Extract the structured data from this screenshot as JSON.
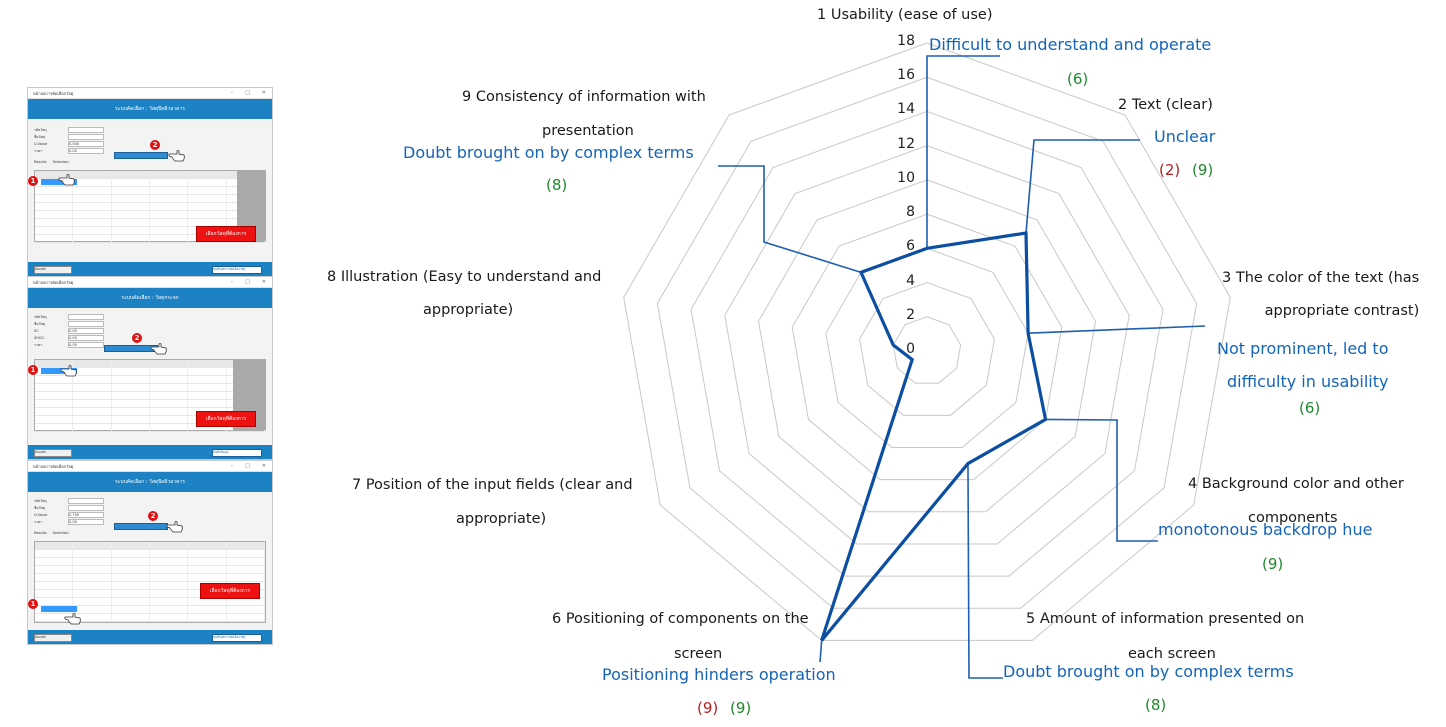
{
  "screenshots": [
    {
      "title": "หน้าจอการคัดเลือกวัสดุ",
      "banner": "ระบบคัดเลือก : วัสดุปิดผิวอาคาร",
      "fields": [
        "รหัสวัสดุ",
        "ชื่อวัสดุ",
        "U-Value",
        "ราคา"
      ],
      "values": [
        "",
        "",
        "0.000",
        "0.00"
      ],
      "tabs": [
        "Results",
        "Selection"
      ],
      "red_button": "เลือกวัสดุที่ต้องการ",
      "footer_left": "ย้อนกลับ",
      "footer_right": "บันทึกผลการคัดเลือกวัสดุ"
    },
    {
      "title": "หน้าจอการคัดเลือกวัสดุ",
      "banner": "ระบบคัดเลือก : วัสดุกระจก",
      "fields": [
        "รหัสวัสดุ",
        "ชื่อวัสดุ",
        "SC",
        "SHGC",
        "ราคา"
      ],
      "values": [
        "",
        "",
        "0.00",
        "0.00",
        "0.00"
      ],
      "tabs": [],
      "red_button": "เลือกวัสดุที่ต้องการ",
      "footer_left": "ย้อนกลับ",
      "footer_right": "บันทึกข้อมูล"
    },
    {
      "title": "หน้าจอการคัดเลือกวัสดุ",
      "banner": "ระบบคัดเลือก : วัสดุปิดผิวอาคาร",
      "fields": [
        "รหัสวัสดุ",
        "ชื่อวัสดุ",
        "U-Value",
        "ราคา"
      ],
      "values": [
        "",
        "",
        "0.750",
        "0.00"
      ],
      "tabs": [
        "Results",
        "Selection"
      ],
      "red_button": "เลือกวัสดุที่ต้องการ",
      "footer_left": "ย้อนกลับ",
      "footer_right": "บันทึกผลการคัดเลือกวัสดุ"
    }
  ],
  "badges": [
    "1",
    "2"
  ],
  "chart_data": {
    "type": "radar",
    "title": "",
    "rmin": 0,
    "rmax": 18,
    "ticks": [
      "0",
      "2",
      "4",
      "6",
      "8",
      "10",
      "12",
      "14",
      "16",
      "18"
    ],
    "grid": true,
    "categories": [
      "1 Usability (ease of use)",
      "2 Text (clear)",
      "3 The color of the text (has appropriate contrast)",
      "4 Background color and other components",
      "5 Amount of information presented on each screen",
      "6 Positioning of components on the screen",
      "7 Position of the input fields (clear and appropriate)",
      "8 Illustration (Easy to understand and appropriate)",
      "9 Consistency of information with presentation"
    ],
    "series": [
      {
        "name": "",
        "values": [
          6,
          9,
          6,
          8,
          7,
          18,
          1,
          2,
          6
        ],
        "color": "#0b4ea2"
      }
    ],
    "category_label_lines": [
      [
        "1 Usability (ease of use)"
      ],
      [
        "2 Text (clear)"
      ],
      [
        "3 The color of the text (has",
        "appropriate contrast)"
      ],
      [
        "4 Background color and other",
        "components"
      ],
      [
        "5 Amount of information presented on",
        "each screen"
      ],
      [
        "6 Positioning of components on the",
        "screen"
      ],
      [
        "7 Position of the input fields (clear and",
        "appropriate)"
      ],
      [
        "8 Illustration (Easy to understand and",
        "appropriate)"
      ],
      [
        "9 Consistency of information with",
        "presentation"
      ]
    ],
    "annotations": [
      {
        "category": "1",
        "text": [
          "Difficult to understand and operate"
        ],
        "counts": [
          {
            "value": "(6)",
            "color": "green"
          }
        ]
      },
      {
        "category": "2",
        "text": [
          "Unclear"
        ],
        "counts": [
          {
            "value": "(2)",
            "color": "red"
          },
          {
            "value": "(9)",
            "color": "green"
          }
        ]
      },
      {
        "category": "3",
        "text": [
          "Not prominent, led to",
          "difficulty in usability"
        ],
        "counts": [
          {
            "value": "(6)",
            "color": "green"
          }
        ]
      },
      {
        "category": "4",
        "text": [
          "monotonous backdrop hue"
        ],
        "counts": [
          {
            "value": "(9)",
            "color": "green"
          }
        ]
      },
      {
        "category": "5",
        "text": [
          "Doubt brought on by complex terms"
        ],
        "counts": [
          {
            "value": "(8)",
            "color": "green"
          }
        ]
      },
      {
        "category": "6",
        "text": [
          "Positioning hinders operation"
        ],
        "counts": [
          {
            "value": "(9)",
            "color": "red"
          },
          {
            "value": "(9)",
            "color": "green"
          }
        ]
      },
      {
        "category": "9",
        "text": [
          "Doubt brought on by complex terms"
        ],
        "counts": [
          {
            "value": "(8)",
            "color": "green"
          }
        ]
      }
    ]
  },
  "colors": {
    "annotation_blue": "#1464b8",
    "count_green": "#1e8a2c",
    "count_red": "#b22222",
    "leader_line": "#1f5fb0",
    "grid": "#c8c8c8"
  }
}
